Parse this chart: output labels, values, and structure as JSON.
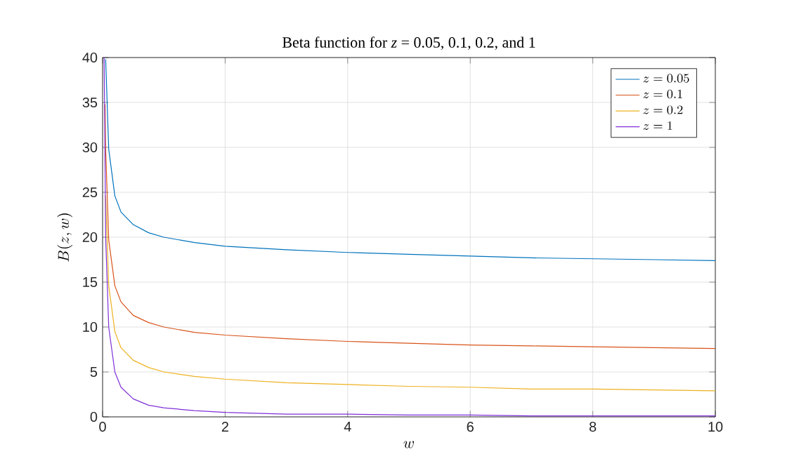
{
  "chart_data": {
    "type": "line",
    "title": "Beta function for *z* = 0.05, 0.1, 0.2, and 1",
    "xlabel": "w",
    "ylabel": "B(z,w)",
    "series": [
      {
        "name": "z = 0.05",
        "color": "#0072bd",
        "x": [
          0.05,
          0.1,
          0.2,
          0.3,
          0.5,
          0.75,
          1,
          1.5,
          2,
          3,
          4,
          5,
          6,
          7,
          8,
          9,
          10
        ],
        "values": [
          39.8,
          29.8,
          24.6,
          22.8,
          21.4,
          20.5,
          20.0,
          19.4,
          19.0,
          18.6,
          18.3,
          18.1,
          17.9,
          17.7,
          17.6,
          17.5,
          17.4
        ]
      },
      {
        "name": "z = 0.1",
        "color": "#d95319",
        "x": [
          0.04,
          0.05,
          0.1,
          0.2,
          0.3,
          0.5,
          0.75,
          1,
          1.5,
          2,
          3,
          4,
          5,
          6,
          7,
          8,
          9,
          10
        ],
        "values": [
          34.8,
          29.8,
          19.7,
          14.6,
          12.8,
          11.3,
          10.5,
          10.0,
          9.4,
          9.1,
          8.7,
          8.4,
          8.2,
          8.0,
          7.9,
          7.8,
          7.7,
          7.6
        ]
      },
      {
        "name": "z = 0.2",
        "color": "#edb120",
        "x": [
          0.05,
          0.1,
          0.2,
          0.3,
          0.5,
          0.75,
          1,
          1.5,
          2,
          3,
          4,
          5,
          6,
          7,
          8,
          9,
          10
        ],
        "values": [
          24.6,
          14.6,
          9.5,
          7.7,
          6.3,
          5.5,
          5.0,
          4.5,
          4.2,
          3.8,
          3.6,
          3.4,
          3.3,
          3.1,
          3.1,
          3.0,
          2.9
        ]
      },
      {
        "name": "z = 1",
        "color": "#7e2fd8",
        "x": [
          0.025,
          0.05,
          0.1,
          0.2,
          0.3,
          0.5,
          0.75,
          1,
          1.5,
          2,
          3,
          4,
          5,
          6,
          7,
          8,
          9,
          10
        ],
        "values": [
          40.0,
          20.0,
          10.0,
          5.0,
          3.3,
          2.0,
          1.3,
          1.0,
          0.7,
          0.5,
          0.3,
          0.3,
          0.2,
          0.2,
          0.1,
          0.1,
          0.1,
          0.1
        ]
      }
    ],
    "xlim": [
      0,
      10
    ],
    "ylim": [
      0,
      40
    ],
    "xticks": [
      0,
      2,
      4,
      6,
      8,
      10
    ],
    "yticks": [
      0,
      5,
      10,
      15,
      20,
      25,
      30,
      35,
      40
    ],
    "grid": true,
    "legend": "top right",
    "line_style": "solid",
    "marker": "none"
  }
}
